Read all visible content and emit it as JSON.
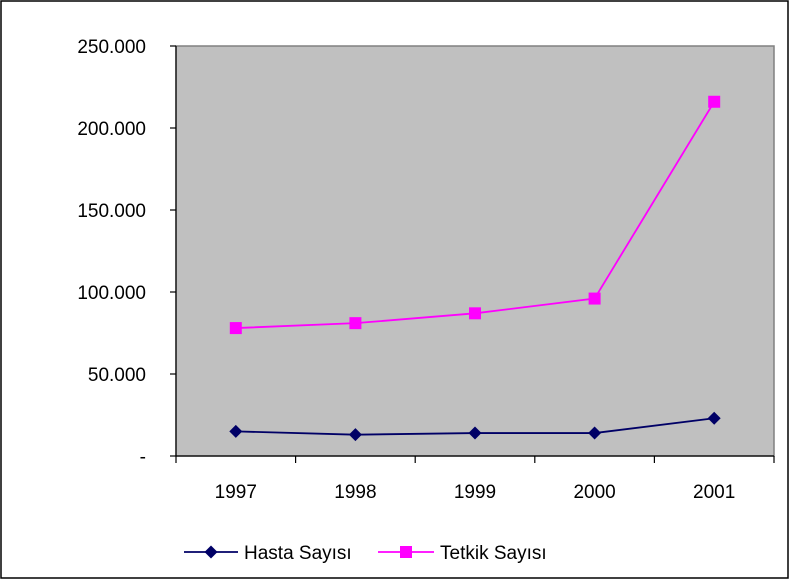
{
  "chart_data": {
    "type": "line",
    "categories": [
      "1997",
      "1998",
      "1999",
      "2000",
      "2001"
    ],
    "ylim": [
      0,
      250000
    ],
    "y_ticks": [
      {
        "value": 0,
        "label": "-"
      },
      {
        "value": 50000,
        "label": "50.000"
      },
      {
        "value": 100000,
        "label": "100.000"
      },
      {
        "value": 150000,
        "label": "150.000"
      },
      {
        "value": 200000,
        "label": "200.000"
      },
      {
        "value": 250000,
        "label": "250.000"
      }
    ],
    "series": [
      {
        "name": "Hasta Sayısı",
        "color": "#000066",
        "marker": "diamond",
        "values": [
          15000,
          13000,
          14000,
          14000,
          23000
        ]
      },
      {
        "name": "Tetkik Sayısı",
        "color": "#ff00ff",
        "marker": "square",
        "values": [
          78000,
          81000,
          87000,
          96000,
          216000
        ]
      }
    ],
    "plot_background": "#c0c0c0",
    "grid": false,
    "legend_position": "bottom"
  }
}
